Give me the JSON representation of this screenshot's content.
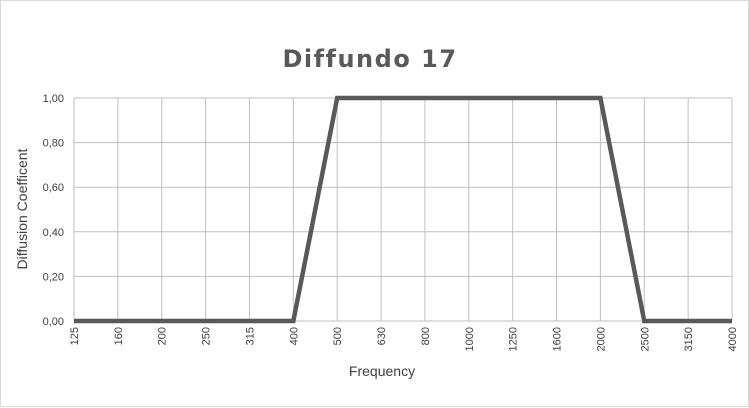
{
  "chart_data": {
    "type": "line",
    "title": "Diffundo 17",
    "xlabel": "Frequency",
    "ylabel": "Diffusion Coefficent",
    "categories": [
      "125",
      "160",
      "200",
      "250",
      "315",
      "400",
      "500",
      "630",
      "800",
      "1000",
      "1250",
      "1600",
      "2000",
      "2500",
      "3150",
      "4000"
    ],
    "y_ticks": [
      "0,00",
      "0,20",
      "0,40",
      "0,60",
      "0,80",
      "1,00"
    ],
    "ylim": [
      0,
      1
    ],
    "grid": true,
    "legend": "none",
    "series": [
      {
        "color": "#595959",
        "values": [
          0,
          0,
          0,
          0,
          0,
          0,
          1,
          1,
          1,
          1,
          1,
          1,
          1,
          0,
          0,
          0
        ]
      }
    ]
  }
}
